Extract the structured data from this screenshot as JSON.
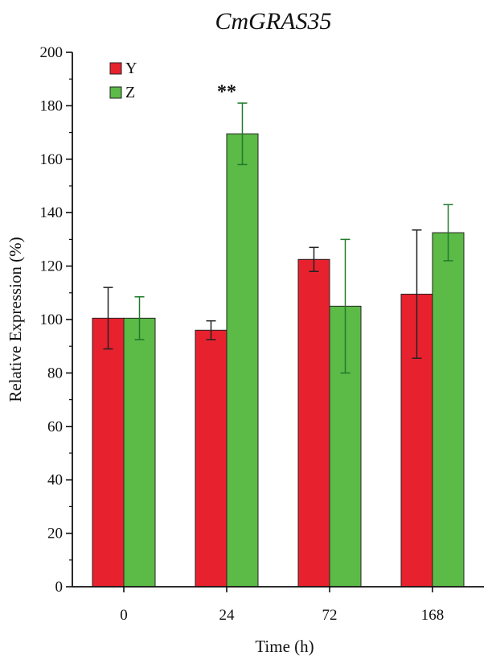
{
  "chart_data": {
    "type": "bar",
    "title": "CmGRAS35",
    "xlabel": "Time (h)",
    "ylabel": "Relative Expression (%)",
    "categories": [
      "0",
      "24",
      "72",
      "168"
    ],
    "ylim": [
      0,
      200
    ],
    "yticks": [
      0,
      20,
      40,
      60,
      80,
      100,
      120,
      140,
      160,
      180,
      200
    ],
    "legend_position": "top-left",
    "series": [
      {
        "name": "Y",
        "color": "#e8212e",
        "errcolor": "#222222",
        "values": [
          100.5,
          96,
          122.5,
          109.5
        ],
        "errors": [
          11.5,
          3.5,
          4.5,
          24
        ]
      },
      {
        "name": "Z",
        "color": "#5cba47",
        "errcolor": "#1e7a2a",
        "values": [
          100.5,
          169.5,
          105,
          132.5
        ],
        "errors": [
          8,
          11.5,
          25,
          10.5
        ]
      }
    ],
    "annotations": [
      {
        "text": "**",
        "category": "24",
        "value": 186
      }
    ]
  }
}
